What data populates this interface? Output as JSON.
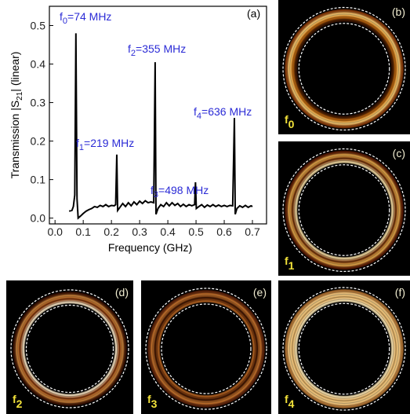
{
  "chart_data": {
    "type": "line",
    "x": [
      0.05,
      0.06,
      0.065,
      0.07,
      0.074,
      0.078,
      0.082,
      0.09,
      0.1,
      0.11,
      0.12,
      0.13,
      0.14,
      0.15,
      0.16,
      0.17,
      0.18,
      0.19,
      0.2,
      0.21,
      0.215,
      0.219,
      0.222,
      0.23,
      0.24,
      0.25,
      0.26,
      0.27,
      0.28,
      0.29,
      0.3,
      0.31,
      0.32,
      0.33,
      0.34,
      0.35,
      0.355,
      0.358,
      0.365,
      0.375,
      0.385,
      0.395,
      0.405,
      0.415,
      0.425,
      0.435,
      0.445,
      0.455,
      0.465,
      0.475,
      0.485,
      0.495,
      0.498,
      0.501,
      0.51,
      0.52,
      0.53,
      0.54,
      0.55,
      0.56,
      0.57,
      0.58,
      0.59,
      0.6,
      0.61,
      0.62,
      0.63,
      0.636,
      0.639,
      0.645,
      0.655,
      0.665,
      0.675,
      0.685,
      0.695,
      0.7
    ],
    "values": [
      0.018,
      0.02,
      0.03,
      0.06,
      0.48,
      0.05,
      0.0,
      0.005,
      0.012,
      0.018,
      0.022,
      0.025,
      0.03,
      0.028,
      0.033,
      0.03,
      0.035,
      0.03,
      0.033,
      0.032,
      0.035,
      0.165,
      0.02,
      0.028,
      0.038,
      0.03,
      0.04,
      0.032,
      0.042,
      0.035,
      0.044,
      0.038,
      0.045,
      0.04,
      0.042,
      0.04,
      0.405,
      0.01,
      0.025,
      0.035,
      0.03,
      0.04,
      0.032,
      0.04,
      0.033,
      0.038,
      0.03,
      0.036,
      0.03,
      0.035,
      0.032,
      0.035,
      0.093,
      0.025,
      0.03,
      0.035,
      0.028,
      0.034,
      0.03,
      0.035,
      0.03,
      0.034,
      0.03,
      0.033,
      0.03,
      0.033,
      0.032,
      0.26,
      0.01,
      0.025,
      0.032,
      0.028,
      0.033,
      0.028,
      0.032,
      0.03
    ],
    "color": "#000000",
    "xlabel": "Frequency (GHz)",
    "ylabel": {
      "text": "Transmission |S",
      "sub": "21",
      "rest": "| (linear)"
    },
    "panel_label": "(a)",
    "xlim": [
      -0.02,
      0.75
    ],
    "xticks": [
      {
        "value": 0,
        "label": "0.0"
      },
      0.1,
      0.2,
      0.3,
      0.4,
      0.5,
      0.6,
      0.7
    ],
    "ylim": [
      -0.015,
      0.55
    ],
    "yticks": [
      {
        "value": 0,
        "label": "0.0"
      },
      0.1,
      0.2,
      0.3,
      0.4,
      0.5
    ],
    "annotations": [
      {
        "text": "f",
        "sub": "0",
        "rest": "=74 MHz"
      },
      {
        "text": "f",
        "sub": "1",
        "rest": "=219 MHz"
      },
      {
        "text": "f",
        "sub": "2",
        "rest": "=355 MHz"
      },
      {
        "text": "f",
        "sub": "3",
        "rest": "=498 MHz"
      },
      {
        "text": "f",
        "sub": "4",
        "rest": "=636 MHz"
      }
    ],
    "annotation_color": "#2b2bd6"
  },
  "panels": [
    {
      "label": "(b)",
      "mode": {
        "text": "f",
        "sub": "0"
      }
    },
    {
      "label": "(c)",
      "mode": {
        "text": "f",
        "sub": "1"
      }
    },
    {
      "label": "(d)",
      "mode": {
        "text": "f",
        "sub": "2"
      }
    },
    {
      "label": "(e)",
      "mode": {
        "text": "f",
        "sub": "3"
      }
    },
    {
      "label": "(f)",
      "mode": {
        "text": "f",
        "sub": "4"
      }
    }
  ]
}
